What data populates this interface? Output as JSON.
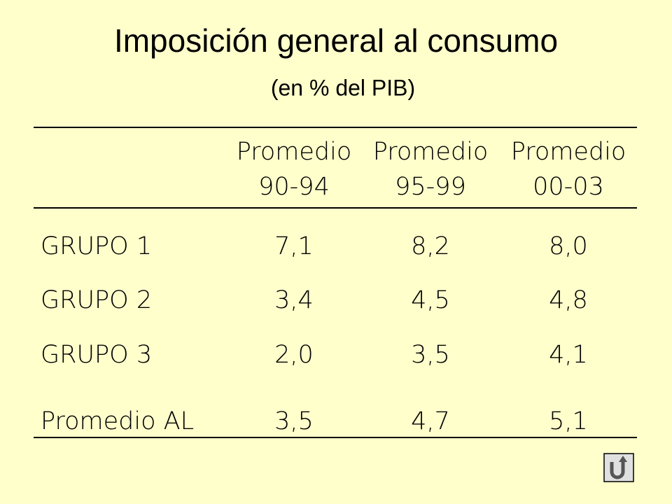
{
  "header": {
    "title": "Imposición general al consumo",
    "subtitle": "(en % del PIB)"
  },
  "table": {
    "columns": [
      [
        "Promedio",
        "90-94"
      ],
      [
        "Promedio",
        "95-99"
      ],
      [
        "Promedio",
        "00-03"
      ]
    ],
    "rows": [
      [
        "GRUPO 1",
        "7,1",
        "8,2",
        "8,0"
      ],
      [
        "GRUPO 2",
        "3,4",
        "4,5",
        "4,8"
      ],
      [
        "GRUPO 3",
        "2,0",
        "3,5",
        "4,1"
      ],
      [
        "Promedio AL",
        "3,5",
        "4,7",
        "5,1"
      ]
    ]
  }
}
